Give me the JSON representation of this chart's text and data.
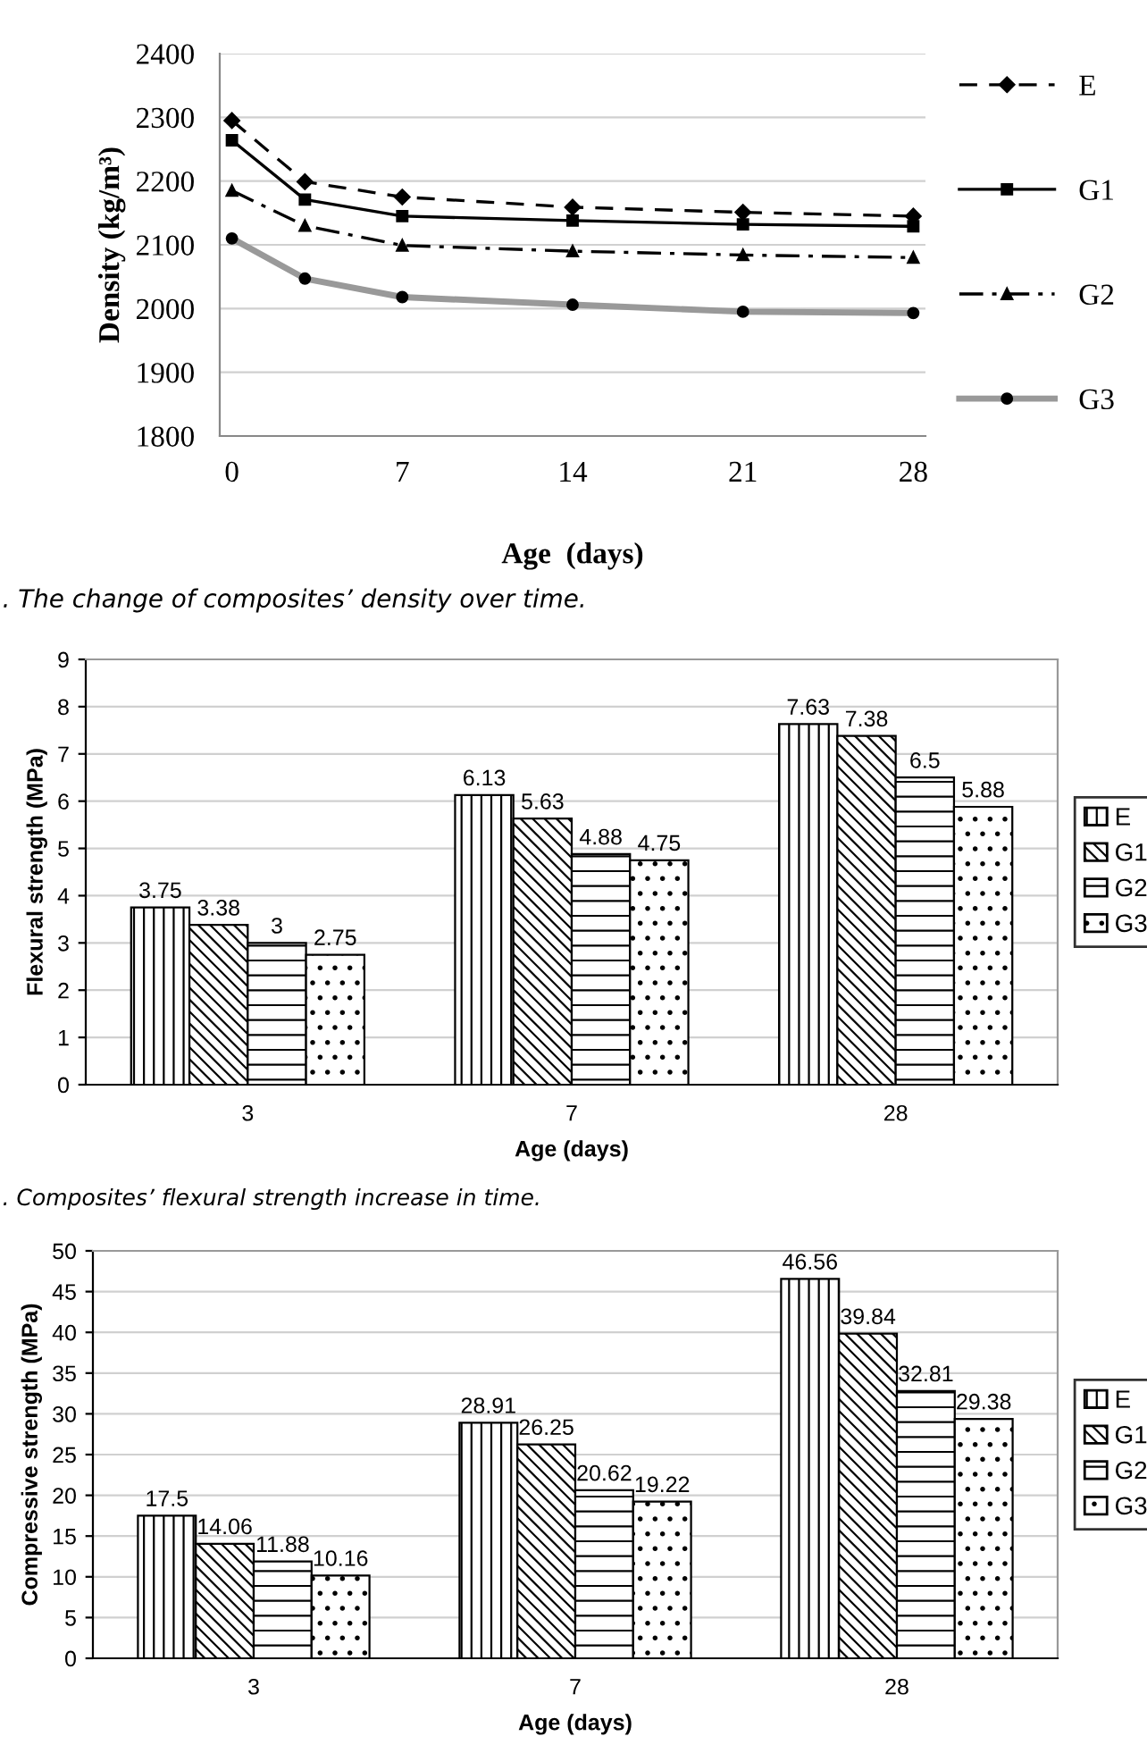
{
  "chart_data": [
    {
      "type": "line",
      "xlabel": "Age  (days)",
      "ylabel": "Density (kg/m³)",
      "x": [
        0,
        3,
        7,
        14,
        21,
        28
      ],
      "xlim": [
        -0.5,
        28.5
      ],
      "xticks": [
        0,
        7,
        14,
        21,
        28
      ],
      "ylim": [
        1800,
        2400
      ],
      "yticks": [
        1800,
        1900,
        2000,
        2100,
        2200,
        2300,
        2400
      ],
      "grid": "y",
      "legend": "right",
      "series": [
        {
          "name": "E",
          "color": "#000000",
          "marker": "diamond",
          "line_style": "dashed",
          "values": [
            2295,
            2199,
            2175,
            2159,
            2151,
            2145
          ]
        },
        {
          "name": "G1",
          "color": "#000000",
          "marker": "square",
          "line_style": "solid",
          "values": [
            2264,
            2171,
            2145,
            2138,
            2132,
            2129
          ]
        },
        {
          "name": "G2",
          "color": "#000000",
          "marker": "triangle",
          "line_style": "dashdot",
          "values": [
            2185,
            2130,
            2099,
            2090,
            2084,
            2080
          ]
        },
        {
          "name": "G3",
          "color": "#999999",
          "marker": "circle",
          "line_style": "solid",
          "values": [
            2110,
            2047,
            2018,
            2006,
            1995,
            1993
          ]
        }
      ],
      "annotations": [
        ". The change of composites’ density over time."
      ]
    },
    {
      "type": "bar",
      "xlabel": "Age (days)",
      "ylabel": "Flexural strength (MPa)",
      "categories": [
        "3",
        "7",
        "28"
      ],
      "ylim": [
        0,
        9
      ],
      "yticks": [
        0,
        1,
        2,
        3,
        4,
        5,
        6,
        7,
        8,
        9
      ],
      "grid": "y",
      "legend": "right",
      "data_labels": true,
      "series": [
        {
          "name": "E",
          "color": "#000000",
          "values": [
            3.75,
            6.13,
            7.63
          ]
        },
        {
          "name": "G1",
          "color": "#000000",
          "values": [
            3.38,
            5.63,
            7.38
          ]
        },
        {
          "name": "G2",
          "color": "#000000",
          "values": [
            3,
            4.88,
            6.5
          ]
        },
        {
          "name": "G3",
          "color": "#000000",
          "values": [
            2.75,
            4.75,
            5.88
          ]
        }
      ],
      "annotations": [
        ". Composites’ flexural strength increase in time."
      ]
    },
    {
      "type": "bar",
      "xlabel": "Age (days)",
      "ylabel": "Compressive strength (MPa)",
      "categories": [
        "3",
        "7",
        "28"
      ],
      "ylim": [
        0,
        50
      ],
      "yticks": [
        0,
        5,
        10,
        15,
        20,
        25,
        30,
        35,
        40,
        45,
        50
      ],
      "grid": "y",
      "legend": "right",
      "data_labels": true,
      "series": [
        {
          "name": "E",
          "color": "#000000",
          "values": [
            17.5,
            28.91,
            46.56
          ]
        },
        {
          "name": "G1",
          "color": "#000000",
          "values": [
            14.06,
            26.25,
            39.84
          ]
        },
        {
          "name": "G2",
          "color": "#000000",
          "values": [
            11.88,
            20.62,
            32.81
          ]
        },
        {
          "name": "G3",
          "color": "#000000",
          "values": [
            10.16,
            19.22,
            29.38
          ]
        }
      ]
    }
  ]
}
